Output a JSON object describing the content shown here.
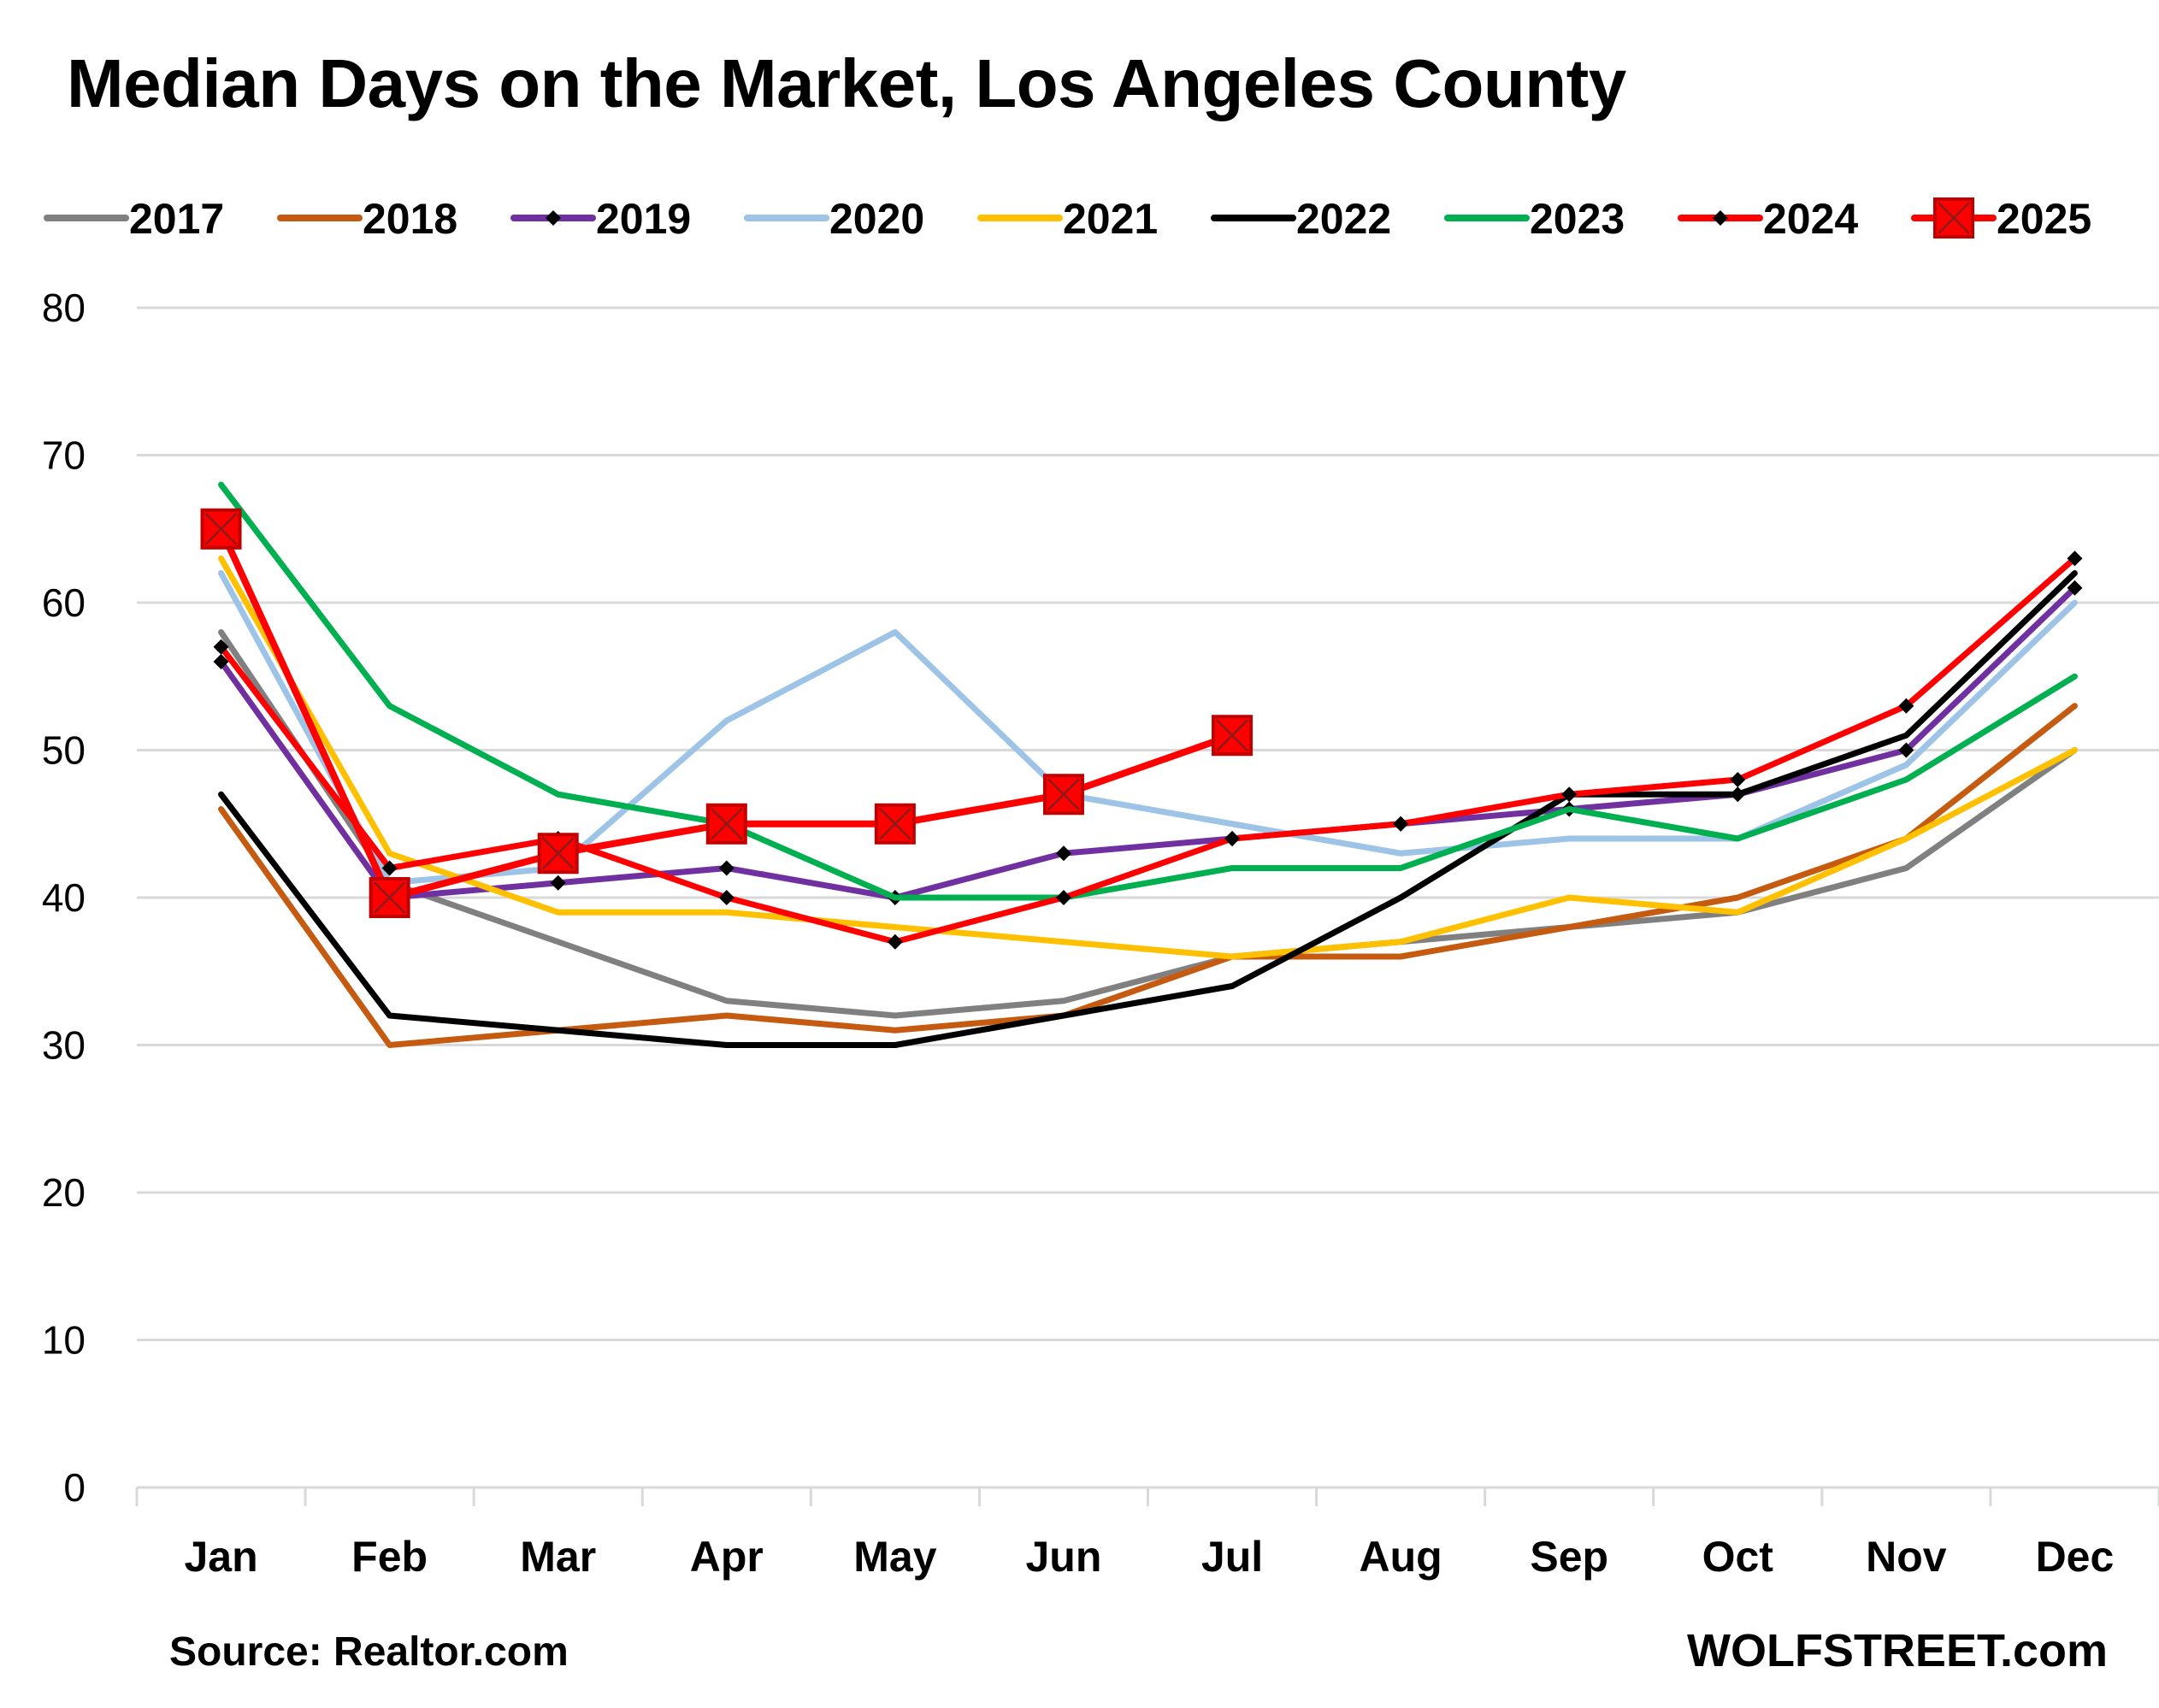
{
  "chart_data": {
    "type": "line",
    "title": "Median Days on the Market, Los Angeles County",
    "xlabel": "",
    "ylabel": "",
    "ylim": [
      0,
      80
    ],
    "yticks": [
      0,
      10,
      20,
      30,
      40,
      50,
      60,
      70,
      80
    ],
    "grid": true,
    "legend_position": "top",
    "categories": [
      "Jan",
      "Feb",
      "Mar",
      "Apr",
      "May",
      "Jun",
      "Jul",
      "Aug",
      "Sep",
      "Oct",
      "Nov",
      "Dec"
    ],
    "series": [
      {
        "name": "2017",
        "color": "#808080",
        "marker": "none",
        "values": [
          58,
          41,
          37,
          33,
          32,
          33,
          36,
          37,
          38,
          39,
          42,
          50
        ]
      },
      {
        "name": "2018",
        "color": "#C55A11",
        "marker": "none",
        "values": [
          46,
          30,
          31,
          32,
          31,
          32,
          36,
          36,
          38,
          40,
          44,
          53
        ]
      },
      {
        "name": "2019",
        "color": "#7030A0",
        "marker": "diamond",
        "values": [
          56,
          40,
          41,
          42,
          40,
          43,
          44,
          45,
          46,
          47,
          50,
          61
        ]
      },
      {
        "name": "2020",
        "color": "#9DC3E6",
        "marker": "none",
        "values": [
          62,
          41,
          42,
          52,
          58,
          47,
          45,
          43,
          44,
          44,
          49,
          60
        ]
      },
      {
        "name": "2021",
        "color": "#FFC000",
        "marker": "none",
        "values": [
          63,
          43,
          39,
          39,
          38,
          37,
          36,
          37,
          40,
          39,
          44,
          50
        ]
      },
      {
        "name": "2022",
        "color": "#000000",
        "marker": "none",
        "values": [
          47,
          32,
          31,
          30,
          30,
          32,
          34,
          40,
          47,
          47,
          51,
          62
        ]
      },
      {
        "name": "2023",
        "color": "#00B050",
        "marker": "none",
        "values": [
          68,
          53,
          47,
          45,
          40,
          40,
          42,
          42,
          46,
          44,
          48,
          55
        ]
      },
      {
        "name": "2024",
        "color": "#FF0000",
        "marker": "diamond",
        "values": [
          57,
          42,
          44,
          40,
          37,
          40,
          44,
          45,
          47,
          48,
          53,
          63
        ]
      },
      {
        "name": "2025",
        "color": "#FF0000",
        "marker": "square-x",
        "values": [
          65,
          40,
          43,
          45,
          45,
          47,
          51,
          null,
          null,
          null,
          null,
          null
        ]
      }
    ]
  },
  "footer": {
    "source": "Source: Realtor.com",
    "credit": "WOLFSTREET.com"
  }
}
